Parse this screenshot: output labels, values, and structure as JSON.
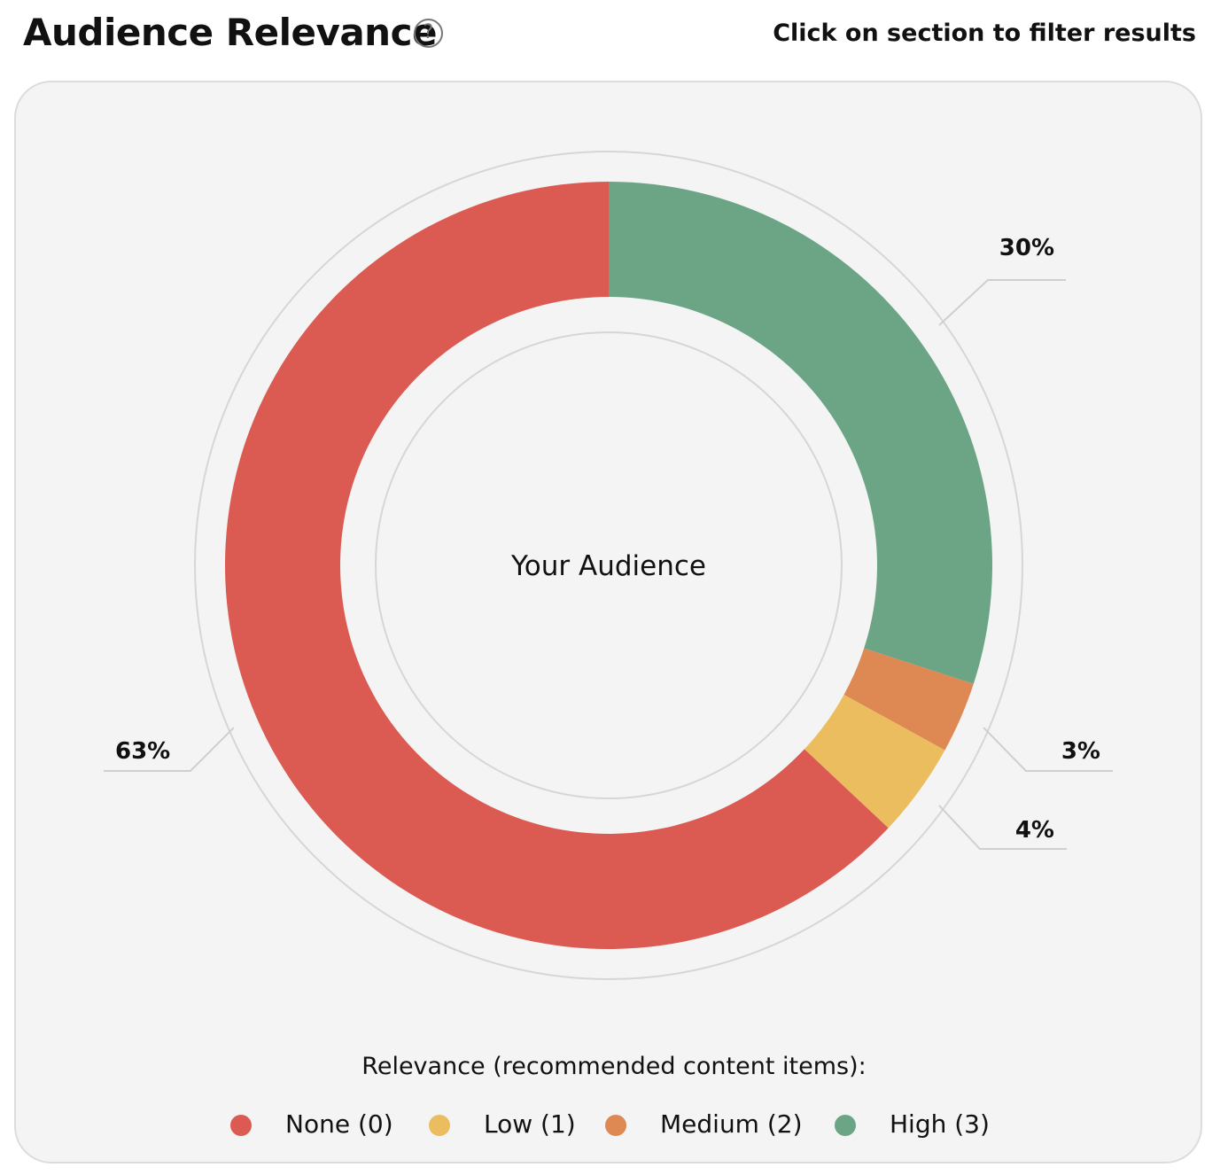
{
  "header": {
    "title": "Audience Relevance",
    "help_icon": "question-circle-icon",
    "hint": "Click on section to filter results"
  },
  "chart_data": {
    "type": "pie",
    "donut": true,
    "center_label": "Your Audience",
    "legend_title": "Relevance (recommended content items):",
    "categories": [
      "None (0)",
      "Low (1)",
      "Medium (2)",
      "High (3)"
    ],
    "values": [
      63,
      4,
      3,
      30
    ],
    "value_labels": [
      "63%",
      "4%",
      "3%",
      "30%"
    ],
    "colors": [
      "#db5b53",
      "#ebbd5e",
      "#de8853",
      "#6ca585"
    ],
    "legend_position": "bottom-center"
  }
}
